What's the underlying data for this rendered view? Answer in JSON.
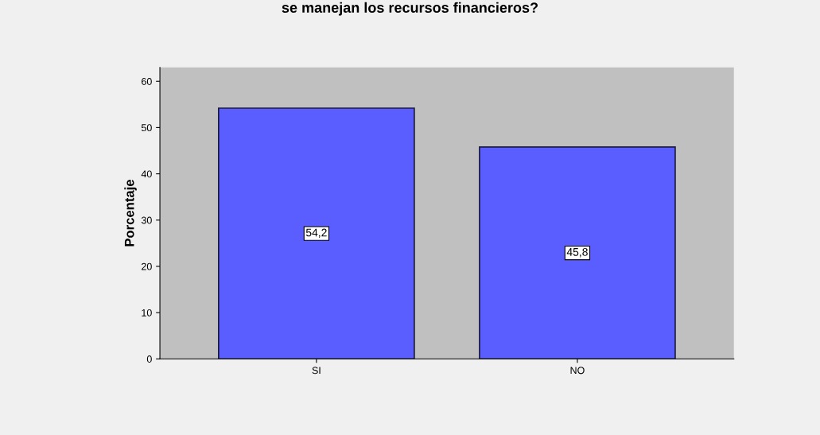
{
  "chart_data": {
    "type": "bar",
    "title": "se manejan los recursos financieros?",
    "ylabel": "Porcentaje",
    "categories": [
      "SI",
      "NO"
    ],
    "values": [
      54.2,
      45.8
    ],
    "value_labels": [
      "54,2",
      "45,8"
    ],
    "color": "#5a5eff",
    "ylim": [
      0,
      63
    ],
    "yticks": [
      0,
      10,
      20,
      30,
      40,
      50,
      60
    ],
    "grid": false,
    "legend": false
  }
}
